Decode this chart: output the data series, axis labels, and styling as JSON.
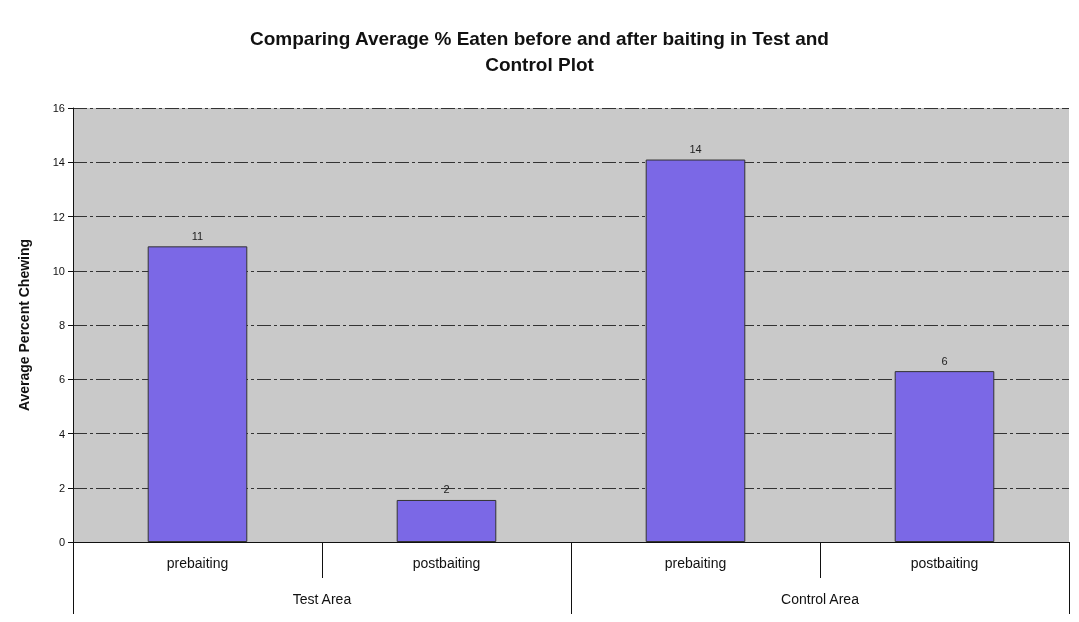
{
  "chart_data": {
    "type": "bar",
    "title": "Comparing Average % Eaten before and after baiting in Test and\nControl Plot",
    "ylabel": "Average Percent Chewing",
    "categories": [
      "prebaiting",
      "postbaiting",
      "prebaiting",
      "postbaiting"
    ],
    "values": [
      10.9,
      1.55,
      14.1,
      6.3
    ],
    "value_labels": [
      "11",
      "2",
      "14",
      "6"
    ],
    "color": "#7b68e6",
    "ylim": [
      0,
      16
    ],
    "yticks": [
      0,
      2,
      4,
      6,
      8,
      10,
      12,
      14,
      16
    ],
    "grid": "y",
    "annotations": [
      "Test Area",
      "Control Area"
    ]
  }
}
